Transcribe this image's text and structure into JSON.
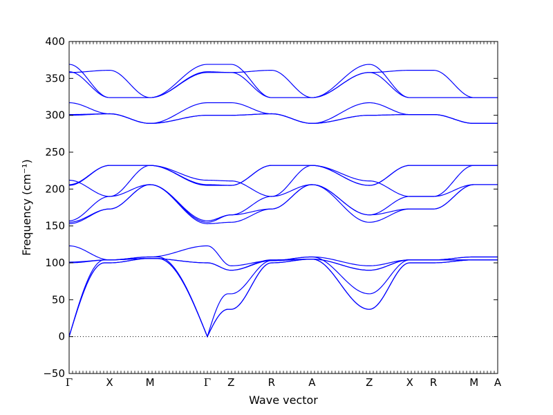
{
  "chart_data": {
    "type": "line",
    "title": "",
    "xlabel": "Wave vector",
    "ylabel": "Frequency (cm⁻¹)",
    "ylim": [
      -50,
      400
    ],
    "y_ticks": [
      -50,
      0,
      50,
      100,
      150,
      200,
      250,
      300,
      350,
      400
    ],
    "grid": false,
    "zero_reference_line": "dotted",
    "line_color": "#0000ff",
    "high_symmetry_points": [
      {
        "label": "Γ",
        "position": 0.0
      },
      {
        "label": "X",
        "position": 0.5
      },
      {
        "label": "M",
        "position": 1.0
      },
      {
        "label": "Γ",
        "position": 1.707
      },
      {
        "label": "Z",
        "position": 2.0
      },
      {
        "label": "R",
        "position": 2.5
      },
      {
        "label": "A",
        "position": 3.0
      },
      {
        "label": "Z",
        "position": 3.707
      },
      {
        "label": "X",
        "position": 4.207
      },
      {
        "label": "R",
        "position": 4.5
      },
      {
        "label": "M",
        "position": 5.0
      },
      {
        "label": "A",
        "position": 5.293
      }
    ],
    "segment_endpoints": [
      [
        0,
        0,
        0,
        0,
        0,
        0,
        0,
        0,
        0,
        0,
        0,
        0
      ],
      [
        0,
        102,
        102,
        100,
        100,
        103,
        103,
        100,
        100,
        104,
        104,
        104
      ]
    ],
    "band_nodes": [
      [
        0,
        100,
        106,
        0,
        37,
        100,
        105,
        37,
        100,
        100,
        104,
        104
      ],
      [
        0,
        100,
        106,
        0,
        37,
        100,
        105,
        37,
        100,
        100,
        104,
        104
      ],
      [
        0,
        104,
        108,
        0,
        58,
        103,
        108,
        58,
        104,
        104,
        108,
        108
      ],
      [
        100,
        104,
        106,
        100,
        90,
        103,
        105,
        90,
        104,
        104,
        104,
        104
      ],
      [
        101,
        104,
        106,
        100,
        90,
        104,
        105,
        90,
        104,
        104,
        104,
        104
      ],
      [
        123,
        104,
        108,
        123,
        96,
        103,
        108,
        96,
        104,
        104,
        108,
        108
      ],
      [
        153,
        173,
        206,
        153,
        155,
        173,
        206,
        155,
        173,
        173,
        206,
        206
      ],
      [
        155,
        173,
        206,
        155,
        165,
        173,
        206,
        165,
        173,
        173,
        206,
        206
      ],
      [
        157,
        190,
        206,
        157,
        165,
        190,
        206,
        165,
        190,
        190,
        206,
        206
      ],
      [
        205,
        232,
        232,
        205,
        205,
        232,
        232,
        205,
        232,
        232,
        232,
        232
      ],
      [
        206,
        232,
        232,
        206,
        205,
        232,
        232,
        205,
        232,
        232,
        232,
        232
      ],
      [
        212,
        190,
        232,
        212,
        211,
        190,
        232,
        211,
        190,
        190,
        232,
        232
      ],
      [
        300,
        302,
        289,
        300,
        300,
        302,
        289,
        300,
        301,
        301,
        289,
        289
      ],
      [
        301,
        302,
        289,
        300,
        300,
        302,
        289,
        300,
        301,
        301,
        289,
        289
      ],
      [
        317,
        302,
        289,
        317,
        317,
        302,
        289,
        317,
        301,
        301,
        289,
        289
      ],
      [
        358,
        361,
        324,
        358,
        358,
        361,
        324,
        358,
        361,
        361,
        324,
        324
      ],
      [
        359,
        324,
        324,
        359,
        358,
        324,
        324,
        358,
        324,
        324,
        324,
        324
      ],
      [
        369,
        324,
        324,
        369,
        369,
        324,
        324,
        369,
        324,
        324,
        324,
        324
      ]
    ]
  }
}
